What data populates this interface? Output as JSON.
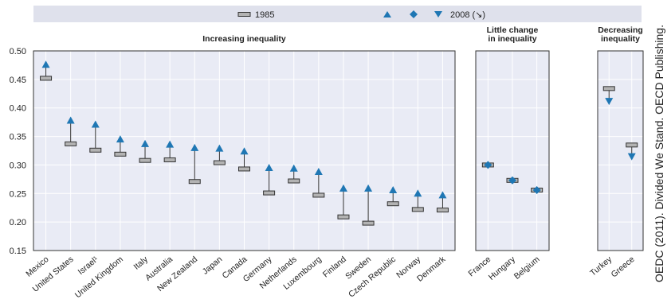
{
  "chart_data": {
    "type": "scatter",
    "legend": {
      "placement": "top",
      "start_label": "1985",
      "end_label": "2008 (↘)"
    },
    "y_ticks": [
      "0.50",
      "0.45",
      "0.40",
      "0.35",
      "0.30",
      "0.25",
      "0.20",
      "0.15"
    ],
    "ylim": [
      0.15,
      0.5
    ],
    "grid": true,
    "source_note": "OEDC (2011). Divided We Stand. OECD Publishing.",
    "panels": [
      {
        "title": "Increasing inequality",
        "countries": [
          "Mexico",
          "United States",
          "Israel¹",
          "United Kingdom",
          "Italy",
          "Australia",
          "New Zealand",
          "Japan",
          "Canada",
          "Germany",
          "Netherlands",
          "Luxembourg",
          "Finland",
          "Sweden",
          "Czech Republic",
          "Norway",
          "Denmark"
        ],
        "y1985": [
          0.452,
          0.337,
          0.326,
          0.319,
          0.308,
          0.309,
          0.271,
          0.304,
          0.293,
          0.251,
          0.272,
          0.247,
          0.209,
          0.198,
          0.232,
          0.222,
          0.221
        ],
        "y2008": [
          0.476,
          0.378,
          0.371,
          0.345,
          0.337,
          0.336,
          0.33,
          0.329,
          0.324,
          0.295,
          0.294,
          0.288,
          0.259,
          0.259,
          0.256,
          0.25,
          0.247
        ]
      },
      {
        "title": "Little change\nin inequality",
        "countries": [
          "France",
          "Hungary",
          "Belgium"
        ],
        "y1985": [
          0.3,
          0.273,
          0.256
        ],
        "y2008": [
          0.3,
          0.273,
          0.256
        ]
      },
      {
        "title": "Decreasing\ninequality",
        "countries": [
          "Turkey",
          "Greece"
        ],
        "y1985": [
          0.434,
          0.335
        ],
        "y2008": [
          0.412,
          0.315
        ]
      }
    ]
  },
  "colors": {
    "panel_bg": "#e9ebf5",
    "legend_bg": "#dfe1ec",
    "grid": "#ffffff",
    "marker": "#1f77b4",
    "bar_fill": "#b3b3b3",
    "bar_stroke": "#333333"
  }
}
